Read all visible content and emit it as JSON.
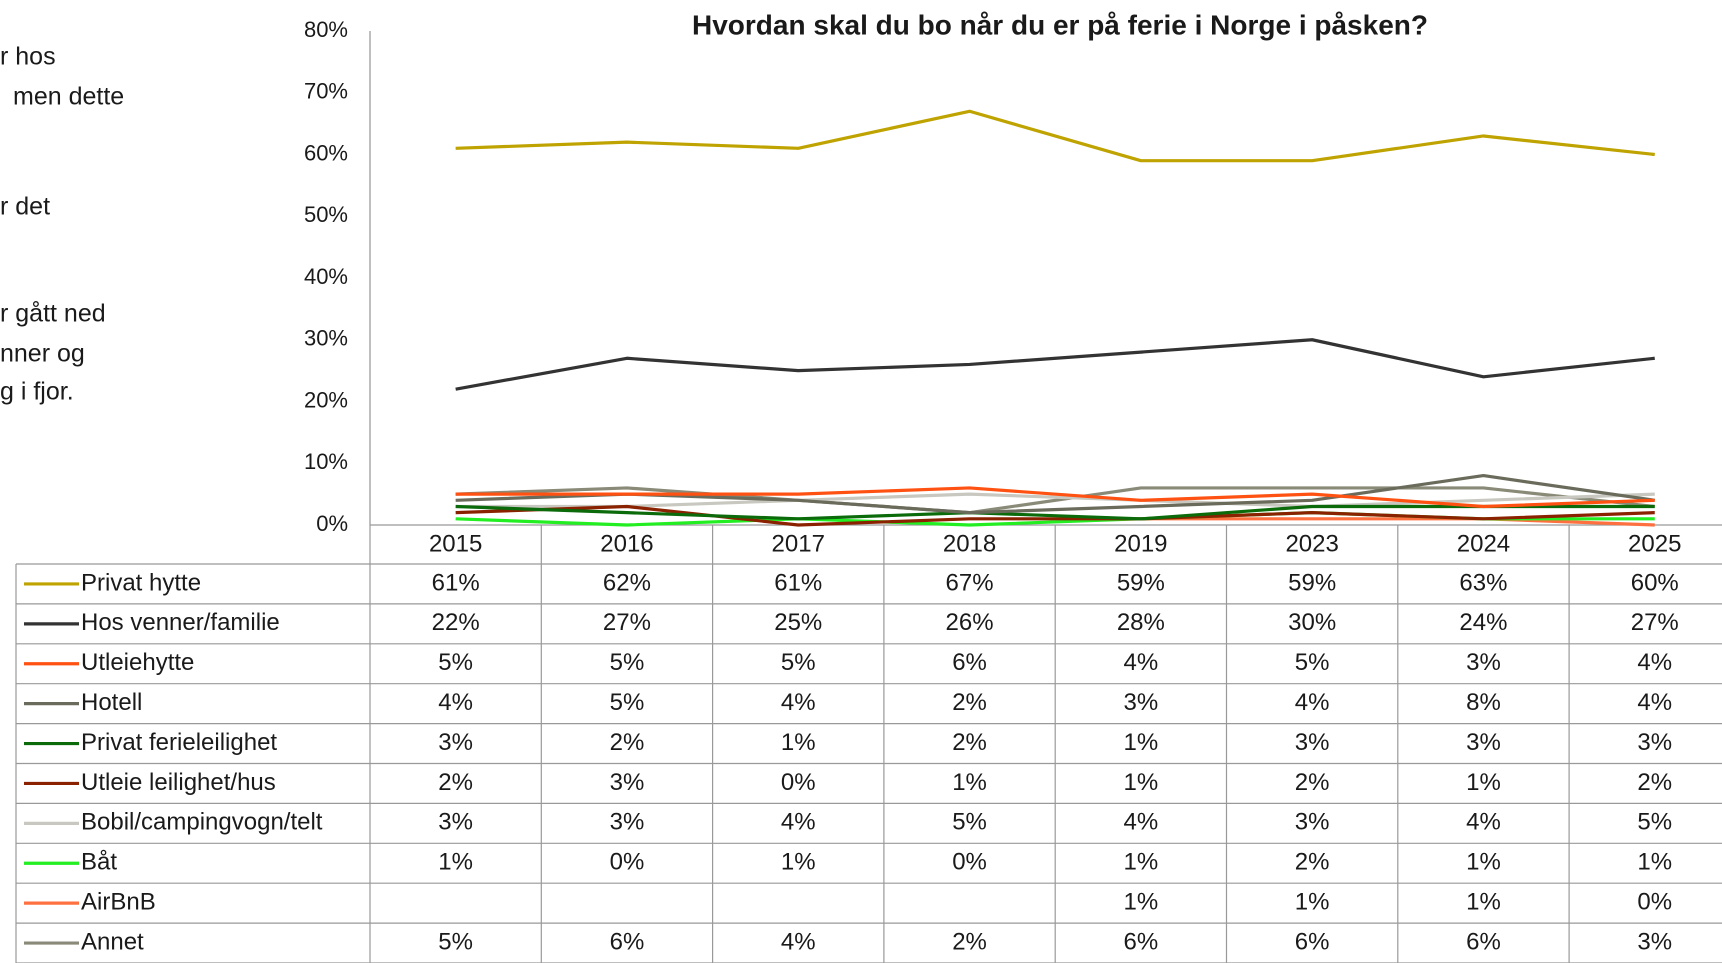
{
  "side_text": [
    "r hos",
    "men dette",
    "r det",
    "r gått ned",
    "nner og",
    "g i fjor."
  ],
  "chart_data": {
    "type": "line",
    "title": "Hvordan skal du bo når du er på ferie i Norge i påsken?",
    "categories": [
      "2015",
      "2016",
      "2017",
      "2018",
      "2019",
      "2023",
      "2024",
      "2025"
    ],
    "ylim": [
      0,
      80
    ],
    "yticks": [
      {
        "value": 0,
        "label": "0%"
      },
      {
        "value": 10,
        "label": "10%"
      },
      {
        "value": 20,
        "label": "20%"
      },
      {
        "value": 30,
        "label": "30%"
      },
      {
        "value": 40,
        "label": "40%"
      },
      {
        "value": 50,
        "label": "50%"
      },
      {
        "value": 60,
        "label": "60%"
      },
      {
        "value": 70,
        "label": "70%"
      },
      {
        "value": 80,
        "label": "80%"
      }
    ],
    "grid": false,
    "series": [
      {
        "name": "Privat hytte",
        "color": "#bfa300",
        "values": [
          61,
          62,
          61,
          67,
          59,
          59,
          63,
          60
        ],
        "value_labels": [
          "61%",
          "62%",
          "61%",
          "67%",
          "59%",
          "59%",
          "63%",
          "60%"
        ]
      },
      {
        "name": "Hos venner/familie",
        "color": "#333333",
        "values": [
          22,
          27,
          25,
          26,
          28,
          30,
          24,
          27
        ],
        "value_labels": [
          "22%",
          "27%",
          "25%",
          "26%",
          "28%",
          "30%",
          "24%",
          "27%"
        ]
      },
      {
        "name": "Utleiehytte",
        "color": "#ff5212",
        "values": [
          5,
          5,
          5,
          6,
          4,
          5,
          3,
          4
        ],
        "value_labels": [
          "5%",
          "5%",
          "5%",
          "6%",
          "4%",
          "5%",
          "3%",
          "4%"
        ]
      },
      {
        "name": "Hotell",
        "color": "#6b6b5c",
        "values": [
          4,
          5,
          4,
          2,
          3,
          4,
          8,
          4
        ],
        "value_labels": [
          "4%",
          "5%",
          "4%",
          "2%",
          "3%",
          "4%",
          "8%",
          "4%"
        ]
      },
      {
        "name": "Privat ferieleilighet",
        "color": "#0b6b0b",
        "values": [
          3,
          2,
          1,
          2,
          1,
          3,
          3,
          3
        ],
        "value_labels": [
          "3%",
          "2%",
          "1%",
          "2%",
          "1%",
          "3%",
          "3%",
          "3%"
        ]
      },
      {
        "name": "Utleie leilighet/hus",
        "color": "#8a2200",
        "values": [
          2,
          3,
          0,
          1,
          1,
          2,
          1,
          2
        ],
        "value_labels": [
          "2%",
          "3%",
          "0%",
          "1%",
          "1%",
          "2%",
          "1%",
          "2%"
        ]
      },
      {
        "name": "Bobil/campingvogn/telt",
        "color": "#c8c8c0",
        "values": [
          3,
          3,
          4,
          5,
          4,
          3,
          4,
          5
        ],
        "value_labels": [
          "3%",
          "3%",
          "4%",
          "5%",
          "4%",
          "3%",
          "4%",
          "5%"
        ]
      },
      {
        "name": "Båt",
        "color": "#22ee22",
        "values": [
          1,
          0,
          1,
          0,
          1,
          2,
          1,
          1
        ],
        "value_labels": [
          "1%",
          "0%",
          "1%",
          "0%",
          "1%",
          "2%",
          "1%",
          "1%"
        ]
      },
      {
        "name": "AirBnB",
        "color": "#ff7040",
        "values": [
          null,
          null,
          null,
          null,
          1,
          1,
          1,
          0
        ],
        "value_labels": [
          null,
          null,
          null,
          null,
          "1%",
          "1%",
          "1%",
          "0%"
        ]
      },
      {
        "name": "Annet",
        "color": "#8a8a78",
        "values": [
          5,
          6,
          4,
          2,
          6,
          6,
          6,
          3
        ],
        "value_labels": [
          "5%",
          "6%",
          "4%",
          "2%",
          "6%",
          "6%",
          "6%",
          "3%"
        ]
      }
    ]
  }
}
